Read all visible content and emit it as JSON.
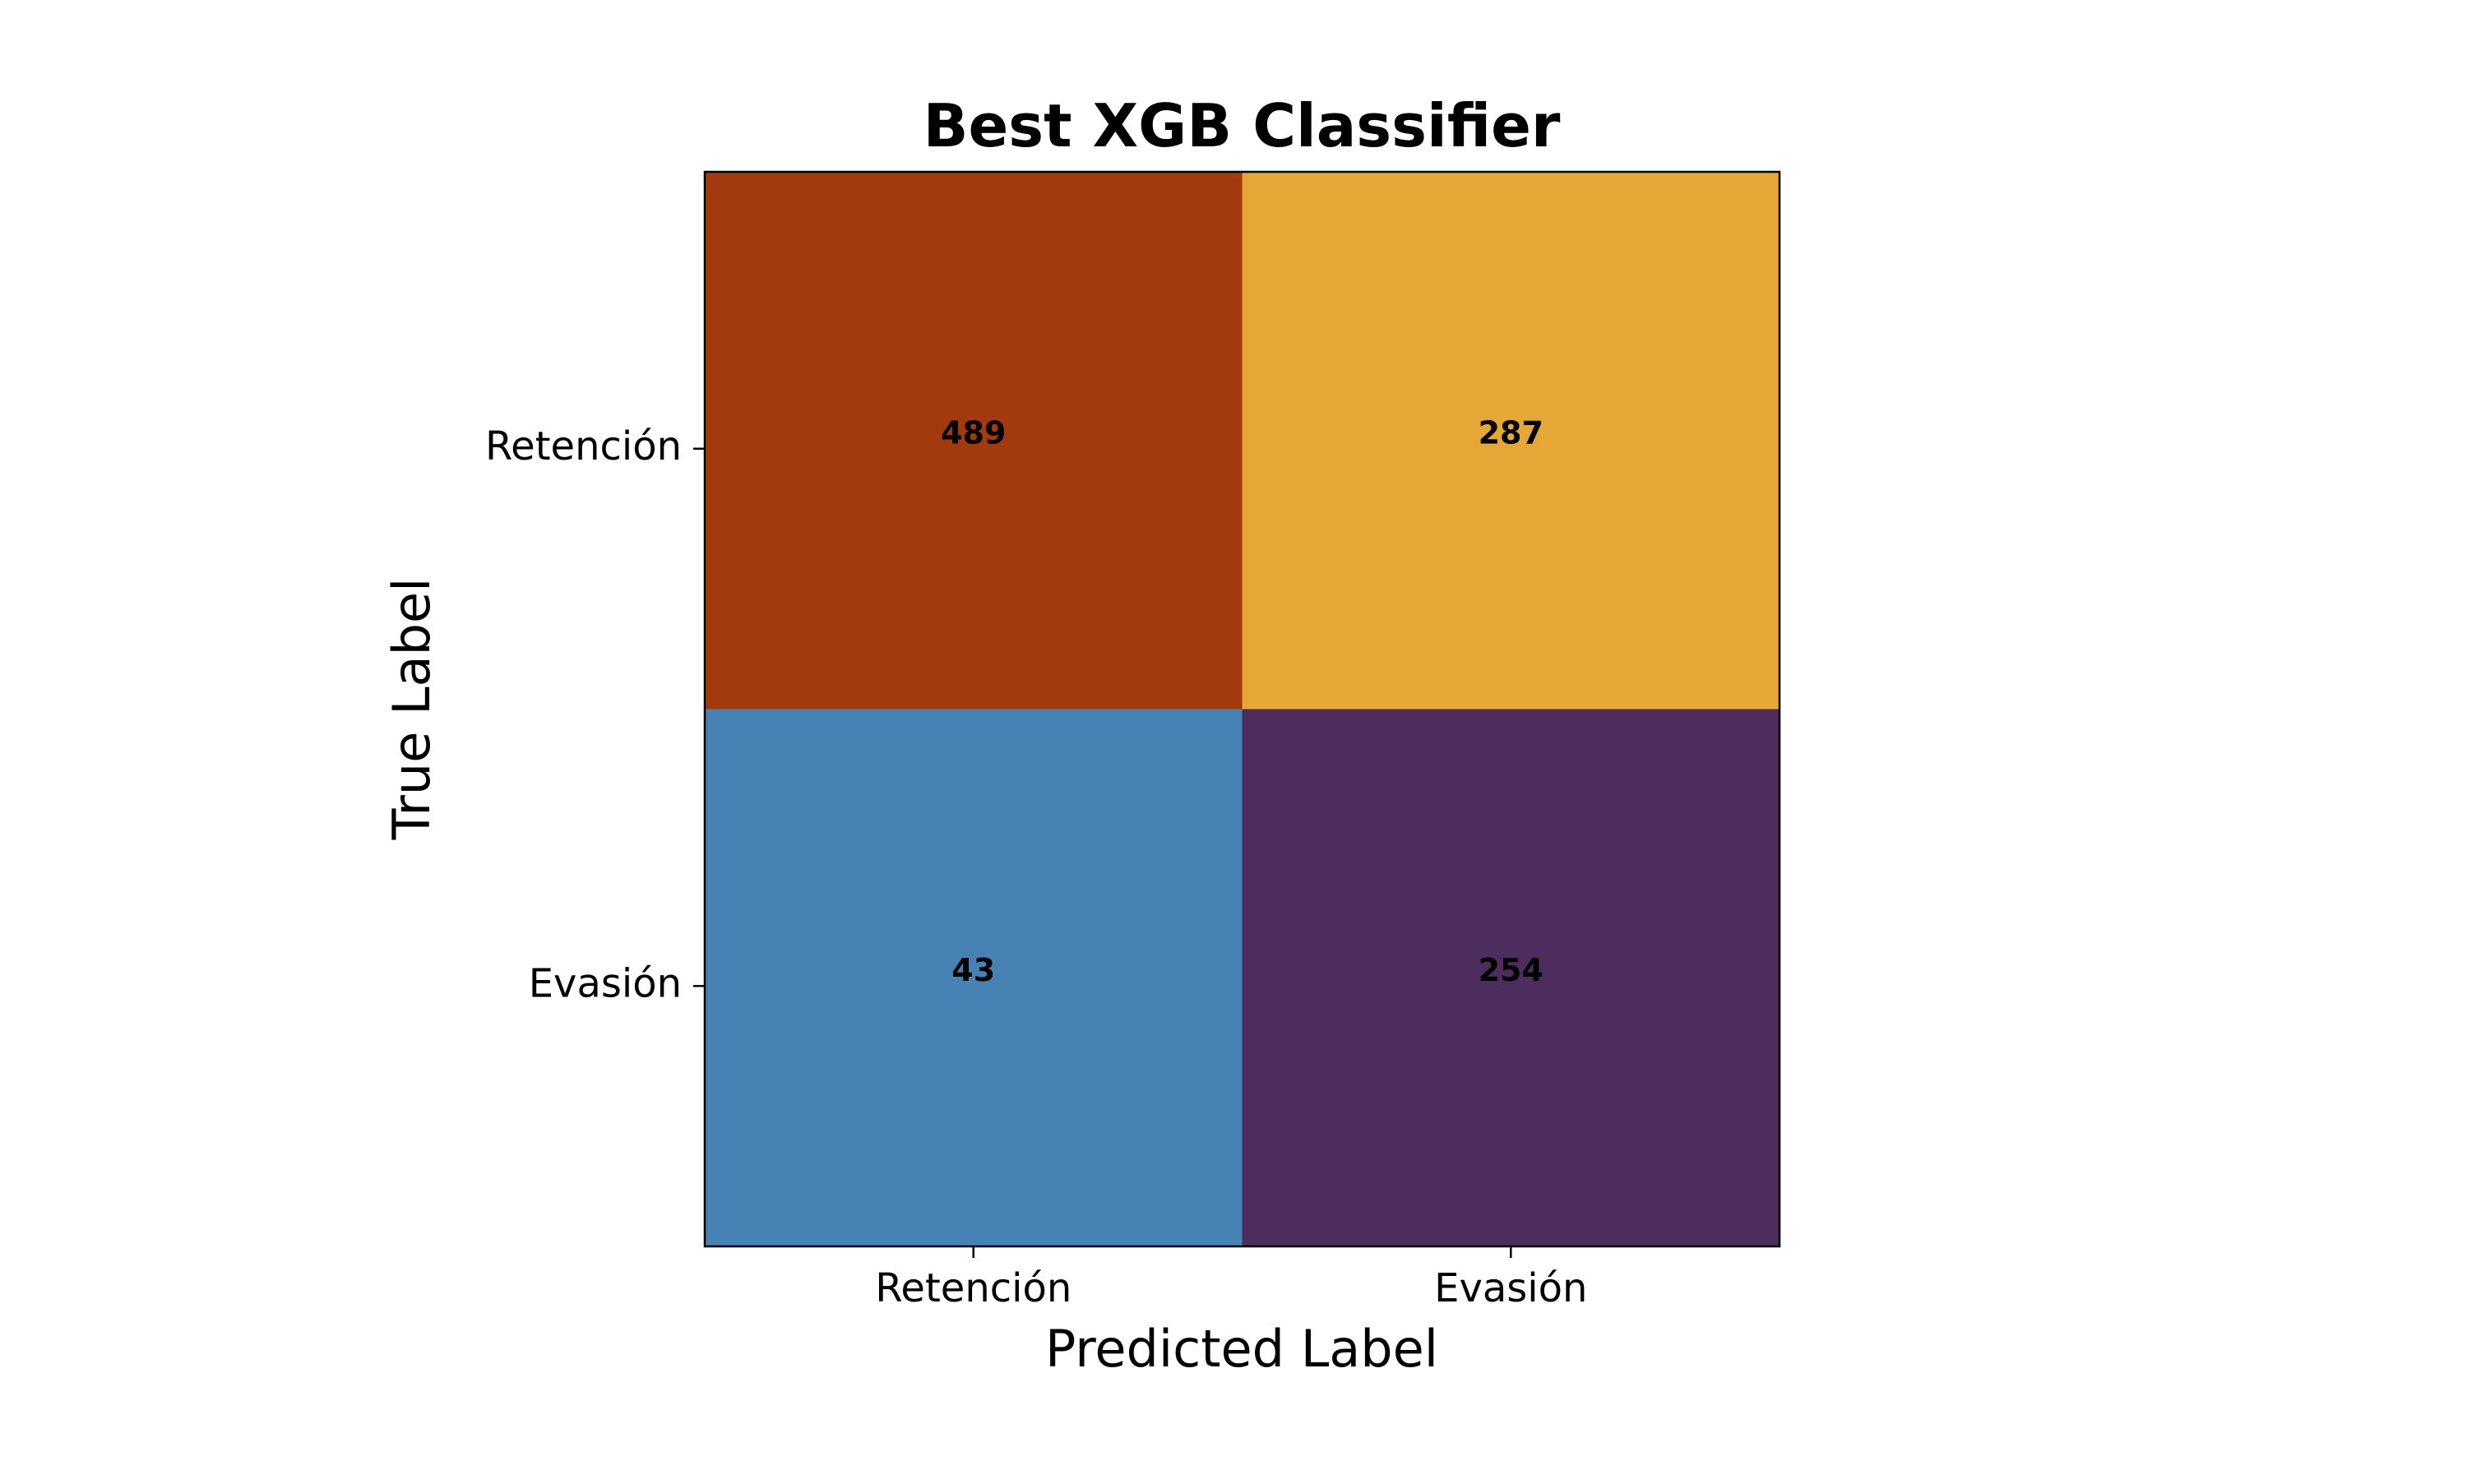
{
  "chart_data": {
    "type": "heatmap",
    "title": "Best XGB Classifier",
    "xlabel": "Predicted Label",
    "ylabel": "True Label",
    "x_categories": [
      "Retención",
      "Evasión"
    ],
    "y_categories": [
      "Retención",
      "Evasión"
    ],
    "values": [
      [
        489,
        287
      ],
      [
        43,
        254
      ]
    ],
    "cell_colors": [
      [
        "#a33a0e",
        "#e5a736"
      ],
      [
        "#4682b4",
        "#4d2c5e"
      ]
    ],
    "annotation_color": "#000000",
    "grid": false,
    "legend": "none"
  }
}
